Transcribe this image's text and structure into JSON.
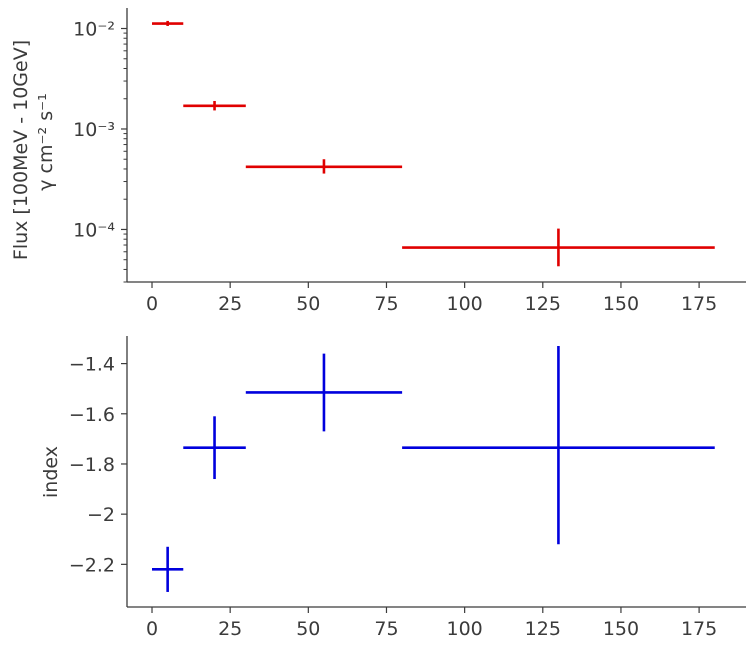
{
  "chart_data": [
    {
      "type": "scatter",
      "errorbars": true,
      "yscale": "log",
      "ylabel": [
        "Flux [100MeV - 10GeV]",
        "γ cm⁻² s⁻¹"
      ],
      "xlabel": "",
      "xlim": [
        -8,
        190
      ],
      "ylim": [
        3e-05,
        0.016
      ],
      "xticks": [
        0,
        25,
        50,
        75,
        100,
        125,
        150,
        175
      ],
      "yticks": [
        {
          "value": 0.0001,
          "label": "10⁻⁴"
        },
        {
          "value": 0.001,
          "label": "10⁻³"
        },
        {
          "value": 0.01,
          "label": "10⁻²"
        }
      ],
      "grid": false,
      "color": "#e00000",
      "points": [
        {
          "x": 5,
          "x_low": 0,
          "x_high": 10,
          "y": 0.0112,
          "y_low": 0.0106,
          "y_high": 0.0119
        },
        {
          "x": 20,
          "x_low": 10,
          "x_high": 30,
          "y": 0.0017,
          "y_low": 0.00153,
          "y_high": 0.0019
        },
        {
          "x": 55,
          "x_low": 30,
          "x_high": 80,
          "y": 0.00042,
          "y_low": 0.00036,
          "y_high": 0.0005
        },
        {
          "x": 130,
          "x_low": 80,
          "x_high": 180,
          "y": 6.6e-05,
          "y_low": 4.3e-05,
          "y_high": 0.000102
        }
      ]
    },
    {
      "type": "scatter",
      "errorbars": true,
      "yscale": "linear",
      "ylabel": "index",
      "xlabel": "",
      "xlim": [
        -8,
        190
      ],
      "ylim": [
        -2.37,
        -1.29
      ],
      "xticks": [
        0,
        25,
        50,
        75,
        100,
        125,
        150,
        175
      ],
      "yticks": [
        -2.2,
        -2.0,
        -1.8,
        -1.6,
        -1.4
      ],
      "grid": false,
      "color": "#0000dd",
      "points": [
        {
          "x": 5,
          "x_low": 0,
          "x_high": 10,
          "y": -2.22,
          "y_low": -2.31,
          "y_high": -2.13
        },
        {
          "x": 20,
          "x_low": 10,
          "x_high": 30,
          "y": -1.735,
          "y_low": -1.86,
          "y_high": -1.61
        },
        {
          "x": 55,
          "x_low": 30,
          "x_high": 80,
          "y": -1.515,
          "y_low": -1.67,
          "y_high": -1.36
        },
        {
          "x": 130,
          "x_low": 80,
          "x_high": 180,
          "y": -1.735,
          "y_low": -2.12,
          "y_high": -1.33
        }
      ]
    }
  ]
}
